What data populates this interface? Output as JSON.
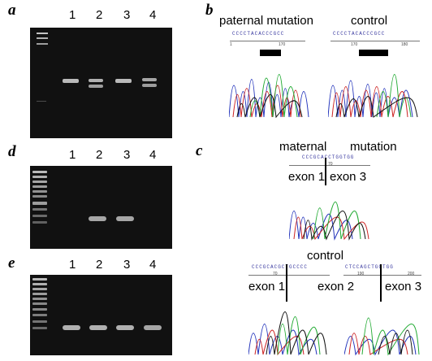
{
  "panels": {
    "a": {
      "letter": "a",
      "lanes": [
        "1",
        "2",
        "3",
        "4"
      ]
    },
    "b": {
      "letter": "b",
      "left_title": "paternal mutation",
      "right_title": "control",
      "left_seq": "CCCCTACACCCGCC",
      "right_seq": "CCCCTACACCCGCC",
      "left_ticks": [
        "1",
        "170"
      ],
      "right_ticks": [
        "170",
        "180"
      ]
    },
    "d": {
      "letter": "d",
      "lanes": [
        "1",
        "2",
        "3",
        "4"
      ]
    },
    "c": {
      "letter": "c",
      "title_left": "maternal",
      "title_right": "mutation",
      "seq": "CCCGCACCTGGTGG",
      "tick": "70",
      "exon_left": "exon 1",
      "exon_right": "exon 3"
    },
    "e": {
      "letter": "e",
      "lanes": [
        "1",
        "2",
        "3",
        "4"
      ]
    },
    "control2": {
      "title": "control",
      "left_seq": "CCCGCACGCTGCCCC",
      "right_seq": "CTCCAGCTGGTGG",
      "left_tick": "70",
      "right_ticks": [
        "190",
        "200"
      ],
      "exon1": "exon 1",
      "exon2": "exon 2",
      "exon3": "exon 3"
    }
  }
}
